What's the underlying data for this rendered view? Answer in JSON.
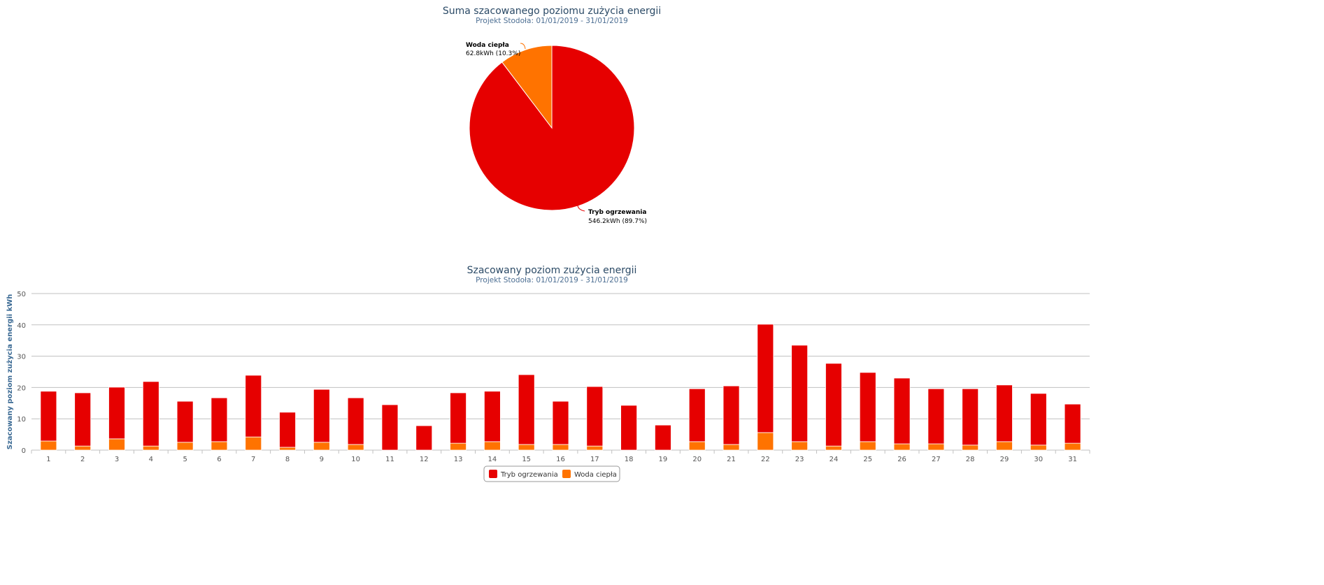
{
  "colors": {
    "heating": "#e60000",
    "water": "#ff7300",
    "grid": "#c0c0c0"
  },
  "chart_data": [
    {
      "type": "pie",
      "title": "Suma szacowanego poziomu zużycia energii",
      "subtitle": "Projekt Stodoła: 01/01/2019 - 31/01/2019",
      "slices": [
        {
          "name": "Tryb ogrzewania",
          "value": 546.2,
          "unit": "kWh",
          "percent": 89.7,
          "label": "546.2kWh (89.7%)"
        },
        {
          "name": "Woda ciepła",
          "value": 62.8,
          "unit": "kWh",
          "percent": 10.3,
          "label": "62.8kWh (10.3%)"
        }
      ]
    },
    {
      "type": "bar",
      "stacked": true,
      "title": "Szacowany poziom zużycia energii",
      "subtitle": "Projekt Stodoła: 01/01/2019 - 31/01/2019",
      "xlabel": "",
      "ylabel": "Szacowany poziom zużycia energii kWh",
      "ylim": [
        0,
        50
      ],
      "yticks": [
        0,
        10,
        20,
        30,
        40,
        50
      ],
      "grid": true,
      "legend_position": "bottom-center",
      "categories": [
        "1",
        "2",
        "3",
        "4",
        "5",
        "6",
        "7",
        "8",
        "9",
        "10",
        "11",
        "12",
        "13",
        "14",
        "15",
        "16",
        "17",
        "18",
        "19",
        "20",
        "21",
        "22",
        "23",
        "24",
        "25",
        "26",
        "27",
        "28",
        "29",
        "30",
        "31"
      ],
      "series": [
        {
          "name": "Tryb ogrzewania",
          "values": [
            15.9,
            17.0,
            16.5,
            20.6,
            13.1,
            14.0,
            19.7,
            11.2,
            16.9,
            14.9,
            14.5,
            7.8,
            16.1,
            16.1,
            22.3,
            13.8,
            19.0,
            14.3,
            8.0,
            16.9,
            18.7,
            34.6,
            30.8,
            26.4,
            22.1,
            21.0,
            17.6,
            18.0,
            18.1,
            16.5,
            12.5
          ]
        },
        {
          "name": "Woda ciepła",
          "values": [
            2.9,
            1.3,
            3.6,
            1.3,
            2.5,
            2.7,
            4.2,
            0.9,
            2.5,
            1.8,
            0,
            0,
            2.2,
            2.7,
            1.8,
            1.8,
            1.3,
            0,
            0,
            2.7,
            1.8,
            5.6,
            2.7,
            1.3,
            2.7,
            2.0,
            2.0,
            1.6,
            2.7,
            1.6,
            2.2
          ]
        }
      ]
    }
  ]
}
